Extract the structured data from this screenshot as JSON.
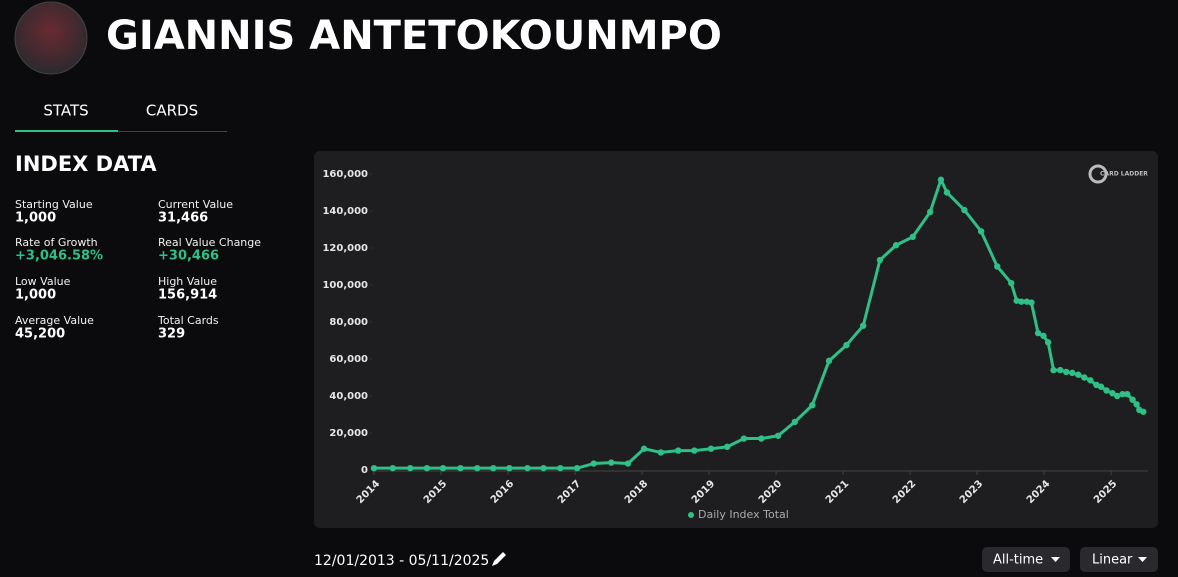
{
  "header": {
    "title": "GIANNIS ANTETOKOUNMPO"
  },
  "tabs": [
    "STATS",
    "CARDS"
  ],
  "index_data": {
    "title": "INDEX DATA",
    "stats": [
      {
        "label": "Starting Value",
        "value": "1,000"
      },
      {
        "label": "Current Value",
        "value": "31,466"
      },
      {
        "label": "Rate of Growth",
        "value": "+3,046.58%"
      },
      {
        "label": "Real Value Change",
        "value": "+30,466"
      },
      {
        "label": "Low Value",
        "value": "1,000"
      },
      {
        "label": "High Value",
        "value": "156,914"
      },
      {
        "label": "Average Value",
        "value": "45,200"
      },
      {
        "label": "Total Cards",
        "value": "329"
      }
    ]
  },
  "logo_text": "CARD LADDER",
  "chart_data": {
    "type": "line",
    "x": [
      2014.0,
      2014.28,
      2014.54,
      2014.79,
      2015.03,
      2015.29,
      2015.54,
      2015.78,
      2016.02,
      2016.29,
      2016.53,
      2016.78,
      2017.03,
      2017.28,
      2017.54,
      2017.79,
      2018.03,
      2018.28,
      2018.54,
      2018.78,
      2019.03,
      2019.27,
      2019.52,
      2019.78,
      2020.03,
      2020.28,
      2020.54,
      2020.79,
      2021.05,
      2021.3,
      2021.55,
      2021.79,
      2022.04,
      2022.3,
      2022.46,
      2022.55,
      2022.81,
      2023.06,
      2023.3,
      2023.51,
      2023.59,
      2023.66,
      2023.74,
      2023.81,
      2023.91,
      2023.99,
      2024.06,
      2024.14,
      2024.24,
      2024.33,
      2024.42,
      2024.51,
      2024.6,
      2024.69,
      2024.78,
      2024.85,
      2024.93,
      2025.02,
      2025.09,
      2025.17,
      2025.24,
      2025.32,
      2025.38,
      2025.42,
      2025.48
    ],
    "series": [
      {
        "name": "Daily Index Total",
        "color": "#2fbf87",
        "values": [
          1000,
          1000,
          1000,
          1000,
          1000,
          1000,
          1000,
          1000,
          1000,
          1000,
          1000,
          1000,
          1000,
          3500,
          4000,
          3500,
          11500,
          9500,
          10500,
          10500,
          11500,
          12500,
          17000,
          17000,
          18500,
          26000,
          35000,
          59000,
          67500,
          78000,
          113500,
          121500,
          126000,
          139500,
          156914,
          150000,
          140500,
          129000,
          110000,
          101000,
          91500,
          91000,
          91000,
          90500,
          74000,
          72500,
          69000,
          54000,
          54000,
          53000,
          52500,
          51500,
          50000,
          48500,
          46000,
          45000,
          43000,
          41500,
          40000,
          41000,
          41000,
          38000,
          35500,
          32500,
          31466
        ]
      }
    ],
    "xlim": [
      2013.97,
      2025.55
    ],
    "xticks": [
      2014,
      2015,
      2016,
      2017,
      2018,
      2019,
      2020,
      2021,
      2022,
      2023,
      2024,
      2025
    ],
    "ylim": [
      0,
      160000
    ],
    "yticks": [
      0,
      {
        "value": 20000,
        "label": "20,000"
      },
      {
        "value": 40000,
        "label": "40,000"
      },
      {
        "value": 60000,
        "label": "60,000"
      },
      {
        "value": 80000,
        "label": "80,000"
      },
      {
        "value": 100000,
        "label": "100,000"
      },
      {
        "value": 120000,
        "label": "120,000"
      },
      {
        "value": 140000,
        "label": "140,000"
      },
      {
        "value": 160000,
        "label": "160,000"
      }
    ]
  },
  "date_range": "12/01/2013 - 05/11/2025",
  "controls": [
    "All-time",
    "Linear"
  ]
}
